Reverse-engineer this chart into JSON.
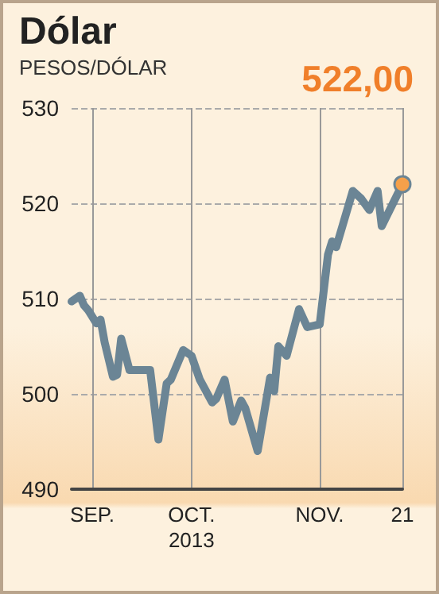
{
  "chart_data": {
    "type": "line",
    "title": "Dólar",
    "ylabel": "PESOS/DÓLAR",
    "x": [
      "2013-09-02",
      "2013-09-04",
      "2013-09-05",
      "2013-09-06",
      "2013-09-08",
      "2013-09-09",
      "2013-09-10",
      "2013-09-12",
      "2013-09-13",
      "2013-09-14",
      "2013-09-16",
      "2013-09-18",
      "2013-09-21",
      "2013-09-23",
      "2013-09-25",
      "2013-09-26",
      "2013-09-29",
      "2013-10-01",
      "2013-10-03",
      "2013-10-06",
      "2013-10-07",
      "2013-10-09",
      "2013-10-11",
      "2013-10-13",
      "2013-10-14",
      "2013-10-17",
      "2013-10-20",
      "2013-10-21",
      "2013-10-22",
      "2013-10-24",
      "2013-10-27",
      "2013-10-29",
      "2013-11-01",
      "2013-11-03",
      "2013-11-04",
      "2013-11-05",
      "2013-11-09",
      "2013-11-11",
      "2013-11-13",
      "2013-11-15",
      "2013-11-16",
      "2013-11-21"
    ],
    "series": [
      {
        "color": "#6b8595",
        "values": [
          509.7,
          510.3,
          509.3,
          508.8,
          507.4,
          507.8,
          505.4,
          501.8,
          502,
          505.8,
          502.5,
          502.5,
          502.5,
          495.2,
          501.1,
          501.5,
          504.6,
          504,
          501.5,
          499.1,
          499.5,
          501.5,
          497.1,
          499.3,
          498.5,
          494,
          501.7,
          500.3,
          505,
          504,
          508.9,
          507,
          507.3,
          514.6,
          516,
          515.4,
          521.3,
          520.5,
          519.3,
          521.3,
          517.6,
          522
        ]
      }
    ],
    "xlim": [
      "2013-09-02",
      "2013-11-21"
    ],
    "xticks": [
      {
        "value": "2013-09-07",
        "label": "SEP."
      },
      {
        "value": "2013-10-01",
        "label": "OCT.\n2013"
      },
      {
        "value": "2013-11-01",
        "label": "NOV."
      },
      {
        "value": "2013-11-21",
        "label": "21"
      }
    ],
    "ylim": [
      490,
      530
    ],
    "yticks": [
      490,
      500,
      510,
      520,
      530
    ],
    "grid": true,
    "annotations": [
      {
        "text": "522,00",
        "x": "2013-11-21",
        "y": 522
      }
    ]
  }
}
